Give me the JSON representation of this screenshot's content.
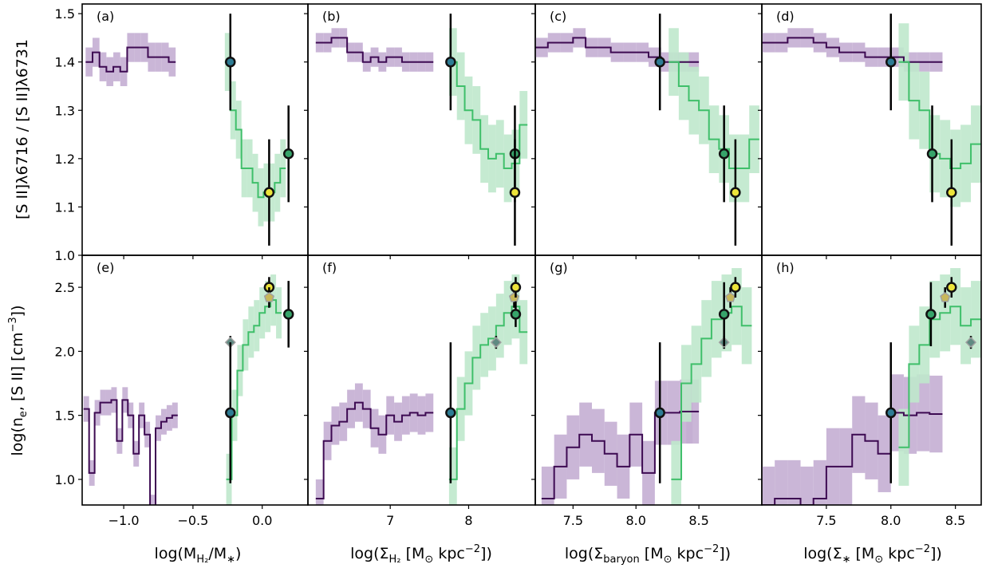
{
  "figure": {
    "row_labels": [
      {
        "main": "[S II]λ6716 / [S II]λ6731"
      },
      {
        "pre": "log(n",
        "sub": "e",
        "mid": ", [S II] [cm",
        "sup": "−3",
        "post": "])"
      }
    ],
    "col_labels": [
      {
        "pre": "log(M",
        "sub": "H₂",
        "post": "/M",
        "sub2": "∗",
        "post2": ")"
      },
      {
        "pre": "log(Σ",
        "sub": "H₂",
        "post": " [M",
        "sub2": "⊙",
        "post2": " kpc",
        "sup": "−2",
        "post3": "])"
      },
      {
        "pre": "log(Σ",
        "sub": "baryon",
        "post": " [M",
        "sub2": "⊙",
        "post2": " kpc",
        "sup": "−2",
        "post3": "])"
      },
      {
        "pre": "log(Σ",
        "sub": "∗",
        "post": " [M",
        "sub2": "⊙",
        "post2": " kpc",
        "sup": "−2",
        "post3": "])"
      }
    ],
    "colors": {
      "purple_line": "#3d0a52",
      "purple_band": "#c4aed3",
      "green_line": "#3fbf6a",
      "green_band": "#bfe8cc",
      "errorbar": "#000000",
      "point_teal": "#2d7c94",
      "point_green": "#37a46a",
      "point_yellow": "#ece43a",
      "diamond": "#5f8a82",
      "pentagon": "#c7b85a"
    }
  },
  "chart_data": [
    {
      "panel_label": "(a)",
      "type": "line",
      "row": 0,
      "col": 0,
      "xlim": [
        -1.3,
        0.33
      ],
      "ylim": [
        1.0,
        1.52
      ],
      "xticks": [
        -1.0,
        -0.5,
        0.0
      ],
      "xtick_labels": [
        "−1.0",
        "−0.5",
        "0.0"
      ],
      "yticks": [
        1.0,
        1.1,
        1.2,
        1.3,
        1.4,
        1.5
      ],
      "ytick_labels": [
        "1.0",
        "1.1",
        "1.2",
        "1.3",
        "1.4",
        "1.5"
      ],
      "purple": {
        "x": [
          -1.25,
          -1.2,
          -1.15,
          -1.1,
          -1.05,
          -1.0,
          -0.95,
          -0.9,
          -0.85,
          -0.8,
          -0.75,
          -0.7,
          -0.65
        ],
        "y": [
          1.4,
          1.42,
          1.39,
          1.38,
          1.39,
          1.38,
          1.43,
          1.43,
          1.43,
          1.41,
          1.41,
          1.41,
          1.4
        ],
        "band": 0.03
      },
      "green": {
        "x": [
          -0.25,
          -0.21,
          -0.17,
          -0.13,
          -0.09,
          -0.05,
          -0.01,
          0.03,
          0.07,
          0.11,
          0.15
        ],
        "y": [
          1.4,
          1.3,
          1.26,
          1.18,
          1.18,
          1.15,
          1.12,
          1.13,
          1.13,
          1.15,
          1.18
        ],
        "band": 0.06
      },
      "points": [
        {
          "x": -0.23,
          "y": 1.4,
          "err": 0.1,
          "color": "teal"
        },
        {
          "x": 0.05,
          "y": 1.13,
          "err": 0.11,
          "color": "yellow"
        },
        {
          "x": 0.19,
          "y": 1.21,
          "err": 0.1,
          "color": "green"
        }
      ]
    },
    {
      "panel_label": "(b)",
      "type": "line",
      "row": 0,
      "col": 1,
      "xlim": [
        5.95,
        8.85
      ],
      "ylim": [
        1.0,
        1.52
      ],
      "xticks": [
        7,
        8
      ],
      "xtick_labels": [
        "7",
        "8"
      ],
      "yticks": [
        1.0,
        1.1,
        1.2,
        1.3,
        1.4,
        1.5
      ],
      "ytick_labels": [],
      "purple": {
        "x": [
          6.1,
          6.2,
          6.3,
          6.4,
          6.5,
          6.6,
          6.7,
          6.8,
          6.9,
          7.0,
          7.1,
          7.2,
          7.3,
          7.4,
          7.5
        ],
        "y": [
          1.44,
          1.44,
          1.45,
          1.45,
          1.42,
          1.42,
          1.4,
          1.41,
          1.4,
          1.41,
          1.41,
          1.4,
          1.4,
          1.4,
          1.4
        ],
        "band": 0.02
      },
      "green": {
        "x": [
          7.8,
          7.9,
          8.0,
          8.1,
          8.2,
          8.3,
          8.4,
          8.5,
          8.6,
          8.7
        ],
        "y": [
          1.4,
          1.35,
          1.3,
          1.28,
          1.22,
          1.2,
          1.21,
          1.18,
          1.19,
          1.27
        ],
        "band": 0.07
      },
      "points": [
        {
          "x": 7.77,
          "y": 1.4,
          "err": 0.1,
          "color": "teal"
        },
        {
          "x": 8.59,
          "y": 1.21,
          "err": 0.1,
          "color": "green"
        },
        {
          "x": 8.59,
          "y": 1.13,
          "err": 0.11,
          "color": "yellow"
        }
      ]
    },
    {
      "panel_label": "(c)",
      "type": "line",
      "row": 0,
      "col": 2,
      "xlim": [
        7.2,
        9.0
      ],
      "ylim": [
        1.0,
        1.52
      ],
      "xticks": [
        7.5,
        8.0,
        8.5
      ],
      "xtick_labels": [
        "7.5",
        "8.0",
        "8.5"
      ],
      "yticks": [
        1.0,
        1.1,
        1.2,
        1.3,
        1.4,
        1.5
      ],
      "ytick_labels": [],
      "purple": {
        "x": [
          7.25,
          7.35,
          7.45,
          7.55,
          7.65,
          7.75,
          7.85,
          7.95,
          8.05,
          8.15,
          8.25,
          8.35,
          8.45
        ],
        "y": [
          1.43,
          1.44,
          1.44,
          1.45,
          1.43,
          1.43,
          1.42,
          1.42,
          1.42,
          1.41,
          1.4,
          1.4,
          1.4
        ],
        "band": 0.02
      },
      "green": {
        "x": [
          8.3,
          8.38,
          8.46,
          8.54,
          8.62,
          8.7,
          8.78,
          8.86,
          8.94
        ],
        "y": [
          1.4,
          1.35,
          1.32,
          1.3,
          1.24,
          1.22,
          1.18,
          1.18,
          1.24
        ],
        "band": 0.07
      },
      "points": [
        {
          "x": 8.19,
          "y": 1.4,
          "err": 0.1,
          "color": "teal"
        },
        {
          "x": 8.7,
          "y": 1.21,
          "err": 0.1,
          "color": "green"
        },
        {
          "x": 8.79,
          "y": 1.13,
          "err": 0.11,
          "color": "yellow"
        }
      ]
    },
    {
      "panel_label": "(d)",
      "type": "line",
      "row": 0,
      "col": 3,
      "xlim": [
        7.0,
        8.7
      ],
      "ylim": [
        1.0,
        1.52
      ],
      "xticks": [
        7.5,
        8.0,
        8.5
      ],
      "xtick_labels": [
        "7.5",
        "8.0",
        "8.5"
      ],
      "yticks": [
        1.0,
        1.1,
        1.2,
        1.3,
        1.4,
        1.5
      ],
      "ytick_labels": [],
      "purple": {
        "x": [
          7.05,
          7.15,
          7.25,
          7.35,
          7.45,
          7.55,
          7.65,
          7.75,
          7.85,
          7.95,
          8.05,
          8.15,
          8.25,
          8.35
        ],
        "y": [
          1.44,
          1.44,
          1.45,
          1.45,
          1.44,
          1.43,
          1.42,
          1.42,
          1.41,
          1.41,
          1.41,
          1.4,
          1.4,
          1.4
        ],
        "band": 0.02
      },
      "green": {
        "x": [
          8.1,
          8.18,
          8.26,
          8.34,
          8.42,
          8.5,
          8.58,
          8.66
        ],
        "y": [
          1.4,
          1.32,
          1.3,
          1.21,
          1.2,
          1.18,
          1.19,
          1.23
        ],
        "band": 0.08
      },
      "points": [
        {
          "x": 8.0,
          "y": 1.4,
          "err": 0.1,
          "color": "teal"
        },
        {
          "x": 8.32,
          "y": 1.21,
          "err": 0.1,
          "color": "green"
        },
        {
          "x": 8.47,
          "y": 1.13,
          "err": 0.11,
          "color": "yellow"
        }
      ]
    },
    {
      "panel_label": "(e)",
      "type": "line",
      "row": 1,
      "col": 0,
      "xlim": [
        -1.3,
        0.33
      ],
      "ylim": [
        0.8,
        2.75
      ],
      "xticks": [
        -1.0,
        -0.5,
        0.0
      ],
      "xtick_labels": [
        "−1.0",
        "−0.5",
        "0.0"
      ],
      "yticks": [
        1.0,
        1.5,
        2.0,
        2.5
      ],
      "ytick_labels": [
        "1.0",
        "1.5",
        "2.0",
        "2.5"
      ],
      "purple": {
        "x": [
          -1.27,
          -1.23,
          -1.19,
          -1.15,
          -1.11,
          -1.07,
          -1.03,
          -0.99,
          -0.95,
          -0.91,
          -0.87,
          -0.83,
          -0.79,
          -0.75,
          -0.71,
          -0.67,
          -0.63
        ],
        "y": [
          1.55,
          1.05,
          1.52,
          1.6,
          1.6,
          1.62,
          1.3,
          1.62,
          1.5,
          1.2,
          1.5,
          1.35,
          0.78,
          1.4,
          1.45,
          1.48,
          1.5
        ],
        "band": 0.1
      },
      "green": {
        "x": [
          -0.24,
          -0.2,
          -0.16,
          -0.12,
          -0.08,
          -0.04,
          0.0,
          0.04,
          0.08,
          0.12
        ],
        "y": [
          1.0,
          1.5,
          1.85,
          2.05,
          2.15,
          2.2,
          2.3,
          2.35,
          2.4,
          2.3
        ],
        "band": 0.2
      },
      "points": [
        {
          "x": -0.23,
          "y": 2.07,
          "err": 0.05,
          "color": "diamond"
        },
        {
          "x": -0.23,
          "y": 1.52,
          "err": 0.55,
          "color": "teal"
        },
        {
          "x": 0.05,
          "y": 2.5,
          "err": 0.08,
          "color": "yellow"
        },
        {
          "x": 0.05,
          "y": 2.42,
          "err": 0.08,
          "color": "pentagon"
        },
        {
          "x": 0.19,
          "y": 2.29,
          "err": 0.26,
          "color": "green"
        }
      ]
    },
    {
      "panel_label": "(f)",
      "type": "line",
      "row": 1,
      "col": 1,
      "xlim": [
        5.95,
        8.85
      ],
      "ylim": [
        0.8,
        2.75
      ],
      "xticks": [
        7,
        8
      ],
      "xtick_labels": [
        "7",
        "8"
      ],
      "yticks": [
        1.0,
        1.5,
        2.0,
        2.5
      ],
      "ytick_labels": [],
      "purple": {
        "x": [
          6.1,
          6.2,
          6.3,
          6.4,
          6.5,
          6.6,
          6.7,
          6.8,
          6.9,
          7.0,
          7.1,
          7.2,
          7.3,
          7.4,
          7.5
        ],
        "y": [
          0.85,
          1.3,
          1.42,
          1.45,
          1.55,
          1.6,
          1.55,
          1.4,
          1.35,
          1.5,
          1.45,
          1.5,
          1.52,
          1.5,
          1.52
        ],
        "band": 0.15
      },
      "green": {
        "x": [
          7.8,
          7.9,
          8.0,
          8.1,
          8.2,
          8.3,
          8.4,
          8.5,
          8.6,
          8.7
        ],
        "y": [
          1.0,
          1.55,
          1.75,
          1.95,
          2.05,
          2.1,
          2.2,
          2.3,
          2.35,
          2.15
        ],
        "band": 0.25
      },
      "points": [
        {
          "x": 7.77,
          "y": 1.52,
          "err": 0.55,
          "color": "teal"
        },
        {
          "x": 8.35,
          "y": 2.07,
          "err": 0.05,
          "color": "diamond"
        },
        {
          "x": 8.58,
          "y": 2.42,
          "err": 0.08,
          "color": "pentagon"
        },
        {
          "x": 8.6,
          "y": 2.29,
          "err": 0.1,
          "color": "green"
        },
        {
          "x": 8.6,
          "y": 2.5,
          "err": 0.08,
          "color": "yellow"
        }
      ]
    },
    {
      "panel_label": "(g)",
      "type": "line",
      "row": 1,
      "col": 2,
      "xlim": [
        7.2,
        9.0
      ],
      "ylim": [
        0.8,
        2.75
      ],
      "xticks": [
        7.5,
        8.0,
        8.5
      ],
      "xtick_labels": [
        "7.5",
        "8.0",
        "8.5"
      ],
      "yticks": [
        1.0,
        1.5,
        2.0,
        2.5
      ],
      "ytick_labels": [],
      "purple": {
        "x": [
          7.3,
          7.4,
          7.5,
          7.6,
          7.7,
          7.8,
          7.9,
          8.0,
          8.1,
          8.2,
          8.3,
          8.4,
          8.45
        ],
        "y": [
          0.85,
          1.1,
          1.25,
          1.35,
          1.3,
          1.2,
          1.1,
          1.35,
          1.05,
          1.52,
          1.52,
          1.53,
          1.53
        ],
        "band": 0.25
      },
      "green": {
        "x": [
          8.32,
          8.4,
          8.48,
          8.56,
          8.64,
          8.72,
          8.8,
          8.88
        ],
        "y": [
          1.0,
          1.75,
          1.9,
          2.1,
          2.25,
          2.3,
          2.35,
          2.2
        ],
        "band": 0.3
      },
      "points": [
        {
          "x": 8.19,
          "y": 1.52,
          "err": 0.55,
          "color": "teal"
        },
        {
          "x": 8.7,
          "y": 2.07,
          "err": 0.05,
          "color": "diamond"
        },
        {
          "x": 8.75,
          "y": 2.42,
          "err": 0.08,
          "color": "pentagon"
        },
        {
          "x": 8.7,
          "y": 2.29,
          "err": 0.25,
          "color": "green"
        },
        {
          "x": 8.79,
          "y": 2.5,
          "err": 0.08,
          "color": "yellow"
        }
      ]
    },
    {
      "panel_label": "(h)",
      "type": "line",
      "row": 1,
      "col": 3,
      "xlim": [
        7.0,
        8.7
      ],
      "ylim": [
        0.8,
        2.75
      ],
      "xticks": [
        7.5,
        8.0,
        8.5
      ],
      "xtick_labels": [
        "7.5",
        "8.0",
        "8.5"
      ],
      "yticks": [
        1.0,
        1.5,
        2.0,
        2.5
      ],
      "ytick_labels": [],
      "purple": {
        "x": [
          7.05,
          7.15,
          7.25,
          7.35,
          7.45,
          7.55,
          7.65,
          7.75,
          7.85,
          7.95,
          8.05,
          8.15,
          8.25,
          8.35
        ],
        "y": [
          0.8,
          0.85,
          0.85,
          0.8,
          0.85,
          1.1,
          1.1,
          1.35,
          1.3,
          1.2,
          1.52,
          1.5,
          1.52,
          1.51
        ],
        "band": 0.3
      },
      "green": {
        "x": [
          8.1,
          8.18,
          8.26,
          8.34,
          8.42,
          8.5,
          8.58,
          8.66
        ],
        "y": [
          1.25,
          1.9,
          2.05,
          2.25,
          2.3,
          2.35,
          2.2,
          2.25
        ],
        "band": 0.3
      },
      "points": [
        {
          "x": 8.0,
          "y": 1.52,
          "err": 0.55,
          "color": "teal"
        },
        {
          "x": 8.31,
          "y": 2.29,
          "err": 0.25,
          "color": "green"
        },
        {
          "x": 8.42,
          "y": 2.42,
          "err": 0.08,
          "color": "pentagon"
        },
        {
          "x": 8.47,
          "y": 2.5,
          "err": 0.08,
          "color": "yellow"
        },
        {
          "x": 8.62,
          "y": 2.07,
          "err": 0.05,
          "color": "diamond"
        }
      ]
    }
  ]
}
